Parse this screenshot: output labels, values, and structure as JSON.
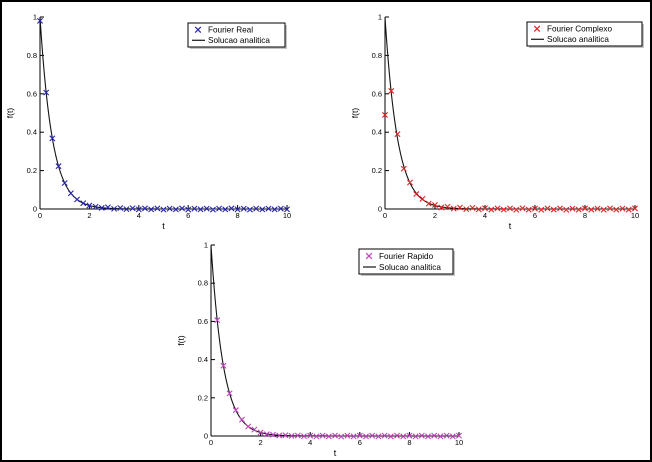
{
  "figure": {
    "background": "#ffffff",
    "frame_color": "#000000",
    "axis_color": "#000000",
    "legend_shadow_color": "#9c9c9c"
  },
  "chart_data": [
    {
      "name": "fourier-real",
      "type": "line+scatter",
      "title": "",
      "xlabel": "t",
      "ylabel": "f(t)",
      "xlim": [
        0,
        10
      ],
      "ylim": [
        0,
        1
      ],
      "xticks": [
        0,
        2,
        4,
        6,
        8,
        10
      ],
      "yticks": [
        0,
        0.2,
        0.4,
        0.6,
        0.8,
        1
      ],
      "grid": false,
      "legend": {
        "position": "top-right-inside",
        "entries": [
          {
            "label": "Fourier Real",
            "symbol": "x-marker",
            "color": "#2424b0"
          },
          {
            "label": "Solucao analitica",
            "symbol": "line",
            "color": "#141414"
          }
        ]
      },
      "line": {
        "label": "Solucao analitica",
        "color": "#141414",
        "formula": "exp",
        "coef": -2
      },
      "markers": {
        "label": "Fourier Real",
        "color": "#2424b0",
        "x": [
          0,
          0.25,
          0.5,
          0.75,
          1,
          1.25,
          1.5,
          1.75,
          2,
          2.25,
          2.5,
          2.75,
          3,
          3.25,
          3.5,
          3.75,
          4,
          4.25,
          4.5,
          4.75,
          5,
          5.25,
          5.5,
          5.75,
          6,
          6.25,
          6.5,
          6.75,
          7,
          7.25,
          7.5,
          7.75,
          8,
          8.25,
          8.5,
          8.75,
          9,
          9.25,
          9.5,
          9.75,
          10
        ],
        "y": [
          0.98,
          0.6065,
          0.3679,
          0.2231,
          0.1353,
          0.0821,
          0.0498,
          0.0302,
          0.0183,
          0.012,
          0.006,
          0.009,
          0.001,
          0.005,
          -0.001,
          0.004,
          -0.002,
          0.003,
          -0.002,
          0.003,
          -0.003,
          0.002,
          -0.002,
          0.003,
          -0.003,
          0.002,
          -0.002,
          0.002,
          -0.003,
          0.002,
          -0.002,
          0.003,
          -0.002,
          0.002,
          -0.003,
          0.002,
          -0.002,
          0.002,
          -0.002,
          0.002,
          -0.002
        ]
      }
    },
    {
      "name": "fourier-complexo",
      "type": "line+scatter",
      "title": "",
      "xlabel": "t",
      "ylabel": "f(t)",
      "xlim": [
        0,
        10
      ],
      "ylim": [
        0,
        1
      ],
      "xticks": [
        0,
        2,
        4,
        6,
        8,
        10
      ],
      "yticks": [
        0,
        0.2,
        0.4,
        0.6,
        0.8,
        1
      ],
      "grid": false,
      "legend": {
        "position": "top-right-inside",
        "entries": [
          {
            "label": "Fourier Complexo",
            "symbol": "x-marker",
            "color": "#e32222"
          },
          {
            "label": "Solucao analitica",
            "symbol": "line",
            "color": "#141414"
          }
        ]
      },
      "line": {
        "label": "Solucao analitica",
        "color": "#141414",
        "formula": "exp",
        "coef": -2
      },
      "markers": {
        "label": "Fourier Complexo",
        "color": "#e32222",
        "x": [
          0,
          0.25,
          0.5,
          0.75,
          1,
          1.25,
          1.5,
          1.75,
          2,
          2.25,
          2.5,
          2.75,
          3,
          3.25,
          3.5,
          3.75,
          4,
          4.25,
          4.5,
          4.75,
          5,
          5.25,
          5.5,
          5.75,
          6,
          6.25,
          6.5,
          6.75,
          7,
          7.25,
          7.5,
          7.75,
          8,
          8.25,
          8.5,
          8.75,
          9,
          9.25,
          9.5,
          9.75,
          10
        ],
        "y": [
          0.49,
          0.615,
          0.39,
          0.21,
          0.138,
          0.078,
          0.053,
          0.028,
          0.021,
          0.008,
          0.012,
          0.002,
          0.008,
          -0.001,
          0.006,
          -0.002,
          0.004,
          -0.003,
          0.003,
          -0.003,
          0.003,
          -0.004,
          0.004,
          -0.003,
          0.002,
          -0.004,
          0.003,
          -0.003,
          0.003,
          -0.004,
          0.002,
          -0.003,
          0.003,
          -0.003,
          0.002,
          -0.004,
          0.003,
          -0.003,
          0.002,
          -0.003,
          0.003
        ]
      }
    },
    {
      "name": "fourier-rapido",
      "type": "line+scatter",
      "title": "",
      "xlabel": "t",
      "ylabel": "f(t)",
      "xlim": [
        0,
        10
      ],
      "ylim": [
        0,
        1
      ],
      "xticks": [
        0,
        2,
        4,
        6,
        8,
        10
      ],
      "yticks": [
        0,
        0.2,
        0.4,
        0.6,
        0.8,
        1
      ],
      "grid": false,
      "legend": {
        "position": "top-right-inside",
        "entries": [
          {
            "label": "Fourier Rapido",
            "symbol": "x-marker",
            "color": "#bf40bf"
          },
          {
            "label": "Solucao analitica",
            "symbol": "line",
            "color": "#141414"
          }
        ]
      },
      "line": {
        "label": "Solucao analitica",
        "color": "#141414",
        "formula": "exp",
        "coef": -2
      },
      "markers": {
        "label": "Fourier Rapido",
        "color": "#bf40bf",
        "x": [
          0.25,
          0.5,
          0.75,
          1,
          1.25,
          1.5,
          1.75,
          2,
          2.25,
          2.5,
          2.75,
          3,
          3.25,
          3.5,
          3.75,
          4,
          4.25,
          4.5,
          4.75,
          5,
          5.25,
          5.5,
          5.75,
          6,
          6.25,
          6.5,
          6.75,
          7,
          7.25,
          7.5,
          7.75,
          8,
          8.25,
          8.5,
          8.75,
          9,
          9.25,
          9.5,
          9.75,
          10
        ],
        "y": [
          0.6065,
          0.3679,
          0.2231,
          0.1353,
          0.0855,
          0.0498,
          0.0335,
          0.0183,
          0.0095,
          0.0067,
          0.0025,
          0.0041,
          0.0005,
          0.0025,
          -0.001,
          0.002,
          -0.002,
          0.002,
          -0.002,
          0.002,
          -0.003,
          0.002,
          -0.002,
          0.002,
          -0.002,
          0.002,
          -0.002,
          0.002,
          -0.002,
          0.002,
          -0.002,
          0.002,
          -0.002,
          0.002,
          -0.002,
          0.002,
          -0.002,
          0.002,
          -0.002,
          0.002
        ]
      }
    }
  ]
}
